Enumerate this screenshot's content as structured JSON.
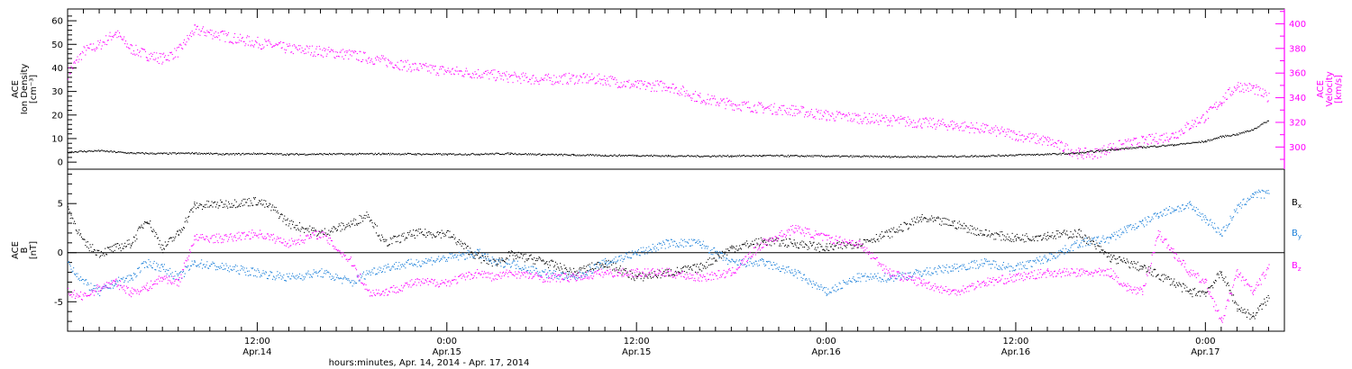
{
  "colors": {
    "density": "#000000",
    "velocity": "#ff00ff",
    "bx": "#000000",
    "by": "#1a7fd9",
    "bz": "#ff00ff"
  },
  "x_axis_title": "hours:minutes, Apr. 14, 2014 - Apr. 17, 2014",
  "x_ticks": [
    {
      "hour": 12,
      "time": "12:00",
      "date": "Apr.14"
    },
    {
      "hour": 24,
      "time": "0:00",
      "date": "Apr.15"
    },
    {
      "hour": 36,
      "time": "12:00",
      "date": "Apr.15"
    },
    {
      "hour": 48,
      "time": "0:00",
      "date": "Apr.16"
    },
    {
      "hour": 60,
      "time": "12:00",
      "date": "Apr.16"
    },
    {
      "hour": 72,
      "time": "0:00",
      "date": "Apr.17"
    }
  ],
  "chart_data": [
    {
      "type": "scatter",
      "panel": "plasma",
      "x_unit": "hours since 2014-04-14 00:00",
      "xlim": [
        0,
        77
      ],
      "left_axis": {
        "label_lines": [
          "ACE",
          "Ion Density",
          "[cm⁻³]"
        ],
        "ylim": [
          -3,
          65
        ],
        "ticks": [
          "0",
          "10",
          "20",
          "30",
          "40",
          "50",
          "60"
        ]
      },
      "right_axis": {
        "label_lines": [
          "ACE",
          "Velocity",
          "[km/s]"
        ],
        "ylim": [
          282,
          412
        ],
        "ticks": [
          "300",
          "320",
          "340",
          "360",
          "380",
          "400"
        ]
      },
      "series": [
        {
          "name": "Ion Density",
          "color_key": "density",
          "axis": "left",
          "x": [
            0,
            2,
            4,
            6,
            8,
            10,
            12,
            14,
            16,
            18,
            20,
            22,
            24,
            26,
            28,
            30,
            32,
            34,
            36,
            38,
            40,
            42,
            44,
            46,
            48,
            50,
            52,
            54,
            56,
            58,
            60,
            62,
            64,
            66,
            68,
            70,
            72,
            73,
            74,
            75,
            76
          ],
          "y": [
            4.5,
            5,
            4,
            3.8,
            4,
            3.5,
            3.8,
            3.5,
            3.6,
            3.6,
            3.7,
            3.6,
            3.5,
            3.6,
            3.8,
            3.4,
            3.2,
            3,
            3,
            2.8,
            2.7,
            2.8,
            2.9,
            2.8,
            2.7,
            2.6,
            2.5,
            2.5,
            2.6,
            2.8,
            3.2,
            3.5,
            4,
            5.5,
            6.5,
            7.5,
            9,
            11,
            12,
            14,
            18
          ]
        },
        {
          "name": "Velocity",
          "color_key": "velocity",
          "axis": "right",
          "x": [
            0,
            1,
            2,
            3,
            4,
            5,
            6,
            7,
            8,
            9,
            10,
            11,
            12,
            14,
            16,
            18,
            20,
            22,
            24,
            26,
            28,
            30,
            32,
            34,
            36,
            38,
            40,
            42,
            44,
            46,
            48,
            50,
            52,
            54,
            56,
            58,
            60,
            62,
            63,
            64,
            65,
            66,
            68,
            70,
            71,
            72,
            73,
            74,
            75,
            76
          ],
          "y": [
            360,
            378,
            383,
            393,
            380,
            375,
            372,
            378,
            395,
            393,
            390,
            387,
            385,
            380,
            378,
            375,
            370,
            365,
            362,
            360,
            357,
            355,
            356,
            355,
            350,
            350,
            340,
            335,
            332,
            330,
            326,
            324,
            322,
            320,
            318,
            315,
            310,
            305,
            300,
            295,
            295,
            300,
            305,
            310,
            318,
            325,
            338,
            350,
            348,
            340
          ]
        }
      ]
    },
    {
      "type": "scatter",
      "panel": "imf",
      "x_unit": "hours since 2014-04-14 00:00",
      "xlim": [
        0,
        77
      ],
      "left_axis": {
        "label_lines": [
          "ACE",
          "B",
          "[nT]"
        ],
        "ylim": [
          -8,
          8.5
        ],
        "ticks": [
          "-5",
          "0",
          "5"
        ]
      },
      "zero_line": 0,
      "series": [
        {
          "name": "B",
          "subscript": "x",
          "color_key": "bx",
          "x": [
            0,
            1,
            2,
            3,
            4,
            5,
            6,
            7,
            8,
            10,
            12,
            13,
            14,
            16,
            18,
            19,
            20,
            22,
            24,
            26,
            27,
            28,
            30,
            32,
            34,
            36,
            38,
            40,
            42,
            44,
            46,
            48,
            50,
            52,
            54,
            56,
            58,
            60,
            62,
            64,
            66,
            68,
            70,
            71,
            72,
            73,
            74,
            75,
            76
          ],
          "y": [
            4.5,
            1,
            0,
            0.5,
            1,
            3.5,
            0.5,
            2,
            4.8,
            5,
            5.3,
            4.5,
            3,
            2,
            3,
            4,
            1,
            2,
            2,
            -0.5,
            -1,
            -0.2,
            -0.8,
            -2,
            -1,
            -2.5,
            -2,
            -1.5,
            0.5,
            1.2,
            1,
            0.5,
            1,
            2,
            3.5,
            3,
            2,
            1.5,
            1.8,
            2,
            -0.5,
            -1.5,
            -3,
            -4,
            -4,
            -2,
            -5.5,
            -6.5,
            -4.5
          ]
        },
        {
          "name": "B",
          "subscript": "y",
          "color_key": "by",
          "x": [
            0,
            1,
            2,
            3,
            4,
            5,
            6,
            7,
            8,
            10,
            12,
            14,
            16,
            18,
            19,
            20,
            22,
            24,
            26,
            27,
            28,
            30,
            32,
            34,
            36,
            38,
            40,
            42,
            44,
            46,
            48,
            50,
            52,
            54,
            56,
            58,
            60,
            62,
            64,
            66,
            67,
            68,
            69,
            70,
            71,
            72,
            73,
            74,
            75,
            76
          ],
          "y": [
            -1,
            -3,
            -4,
            -3,
            -2.5,
            -1,
            -1.5,
            -2.5,
            -1,
            -1.5,
            -2,
            -2.5,
            -2,
            -3,
            -2,
            -1.5,
            -1,
            -0.5,
            0,
            -1,
            -1,
            -2,
            -2.5,
            -1,
            0,
            1,
            1,
            -1,
            -1,
            -2,
            -4,
            -2.5,
            -2.5,
            -2,
            -1.5,
            -1,
            -1.5,
            -0.5,
            1,
            1.5,
            2.5,
            3,
            4,
            4.5,
            4.8,
            3.5,
            2,
            4.5,
            6,
            6
          ]
        },
        {
          "name": "B",
          "subscript": "z",
          "color_key": "bz",
          "x": [
            0,
            1,
            2,
            3,
            4,
            5,
            6,
            7,
            8,
            10,
            12,
            14,
            16,
            18,
            19,
            20,
            22,
            24,
            26,
            27,
            28,
            30,
            32,
            34,
            36,
            38,
            40,
            42,
            44,
            46,
            48,
            50,
            52,
            54,
            56,
            58,
            60,
            62,
            64,
            66,
            67,
            68,
            69,
            70,
            71,
            72,
            73,
            74,
            75,
            76
          ],
          "y": [
            -4,
            -4.5,
            -3.5,
            -3,
            -4,
            -3.5,
            -2.5,
            -3,
            1.5,
            1.5,
            2,
            1,
            2,
            -1,
            -4,
            -4,
            -3,
            -3,
            -2,
            -2.5,
            -2,
            -2.5,
            -2.5,
            -2,
            -2,
            -2,
            -2.5,
            -2,
            1,
            2.5,
            1.5,
            1,
            -2,
            -3,
            -4,
            -3,
            -2.5,
            -2,
            -2,
            -2,
            -3.5,
            -4,
            2,
            0,
            -2,
            -3,
            -7,
            -2,
            -4,
            -1.5
          ]
        }
      ]
    }
  ]
}
